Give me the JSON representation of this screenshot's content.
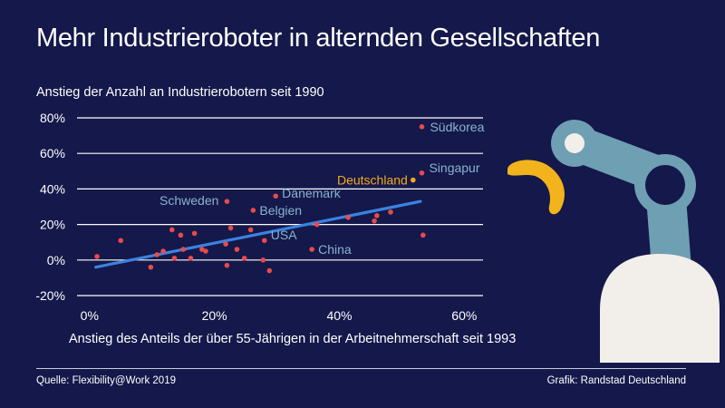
{
  "header": {
    "title": "Mehr Industrieroboter in alternden Gesellschaften",
    "subtitle": "Anstieg der Anzahl an Industrierobotern seit 1990"
  },
  "footer": {
    "source": "Quelle: Flexibility@Work 2019",
    "credit": "Grafik: Randstad Deutschland"
  },
  "colors": {
    "background": "#14184a",
    "point": "#e84a4a",
    "trend": "#3b82e0",
    "label": "#8ab3cc",
    "highlight": "#f2a91c",
    "robot_arm": "#6f9fb3",
    "robot_base": "#f2eeea",
    "gripper": "#f2b31c"
  },
  "chart_data": {
    "type": "scatter",
    "xlabel": "Anstieg des Anteils der über 55-Jährigen in der Arbeitnehmerschaft seit 1993",
    "ylabel": "",
    "xlim": [
      -2,
      63
    ],
    "ylim": [
      -20,
      80
    ],
    "x_ticks": [
      0,
      20,
      40,
      60
    ],
    "x_tick_labels": [
      "0%",
      "20%",
      "40%",
      "60%"
    ],
    "y_ticks": [
      -20,
      0,
      20,
      40,
      60,
      80
    ],
    "y_tick_labels": [
      "-20%",
      "0%",
      "20%",
      "40%",
      "60%",
      "80%"
    ],
    "grid": "horizontal",
    "points": [
      {
        "x": 1.2,
        "y": 2
      },
      {
        "x": 5,
        "y": 11
      },
      {
        "x": 9.8,
        "y": -4
      },
      {
        "x": 10.8,
        "y": 3
      },
      {
        "x": 11.8,
        "y": 5
      },
      {
        "x": 13.2,
        "y": 17
      },
      {
        "x": 13.6,
        "y": 1
      },
      {
        "x": 14.6,
        "y": 14
      },
      {
        "x": 15,
        "y": 6
      },
      {
        "x": 16.2,
        "y": 1
      },
      {
        "x": 16.8,
        "y": 15
      },
      {
        "x": 18,
        "y": 6
      },
      {
        "x": 18.6,
        "y": 5
      },
      {
        "x": 21.8,
        "y": 9
      },
      {
        "x": 22,
        "y": -3
      },
      {
        "x": 22.6,
        "y": 18
      },
      {
        "x": 23.6,
        "y": 6
      },
      {
        "x": 24.8,
        "y": 1
      },
      {
        "x": 25.8,
        "y": 17
      },
      {
        "x": 26.2,
        "y": 28,
        "label": "Belgien"
      },
      {
        "x": 22,
        "y": 33,
        "label": "Schweden"
      },
      {
        "x": 27.8,
        "y": 0
      },
      {
        "x": 28,
        "y": 11,
        "label": "USA"
      },
      {
        "x": 28.8,
        "y": -6
      },
      {
        "x": 29.8,
        "y": 36,
        "label": "Dänemark"
      },
      {
        "x": 35.6,
        "y": 6,
        "label": "China"
      },
      {
        "x": 36.4,
        "y": 20
      },
      {
        "x": 41.4,
        "y": 24
      },
      {
        "x": 45.6,
        "y": 22
      },
      {
        "x": 46,
        "y": 25
      },
      {
        "x": 48.2,
        "y": 27
      },
      {
        "x": 51.8,
        "y": 45,
        "label": "Deutschland",
        "highlight": true
      },
      {
        "x": 53.2,
        "y": 49,
        "label": "Singapur"
      },
      {
        "x": 53.2,
        "y": 75,
        "label": "Südkorea"
      },
      {
        "x": 53.4,
        "y": 14
      }
    ],
    "trendline": {
      "x": [
        1,
        53
      ],
      "y": [
        -4,
        33
      ]
    }
  }
}
